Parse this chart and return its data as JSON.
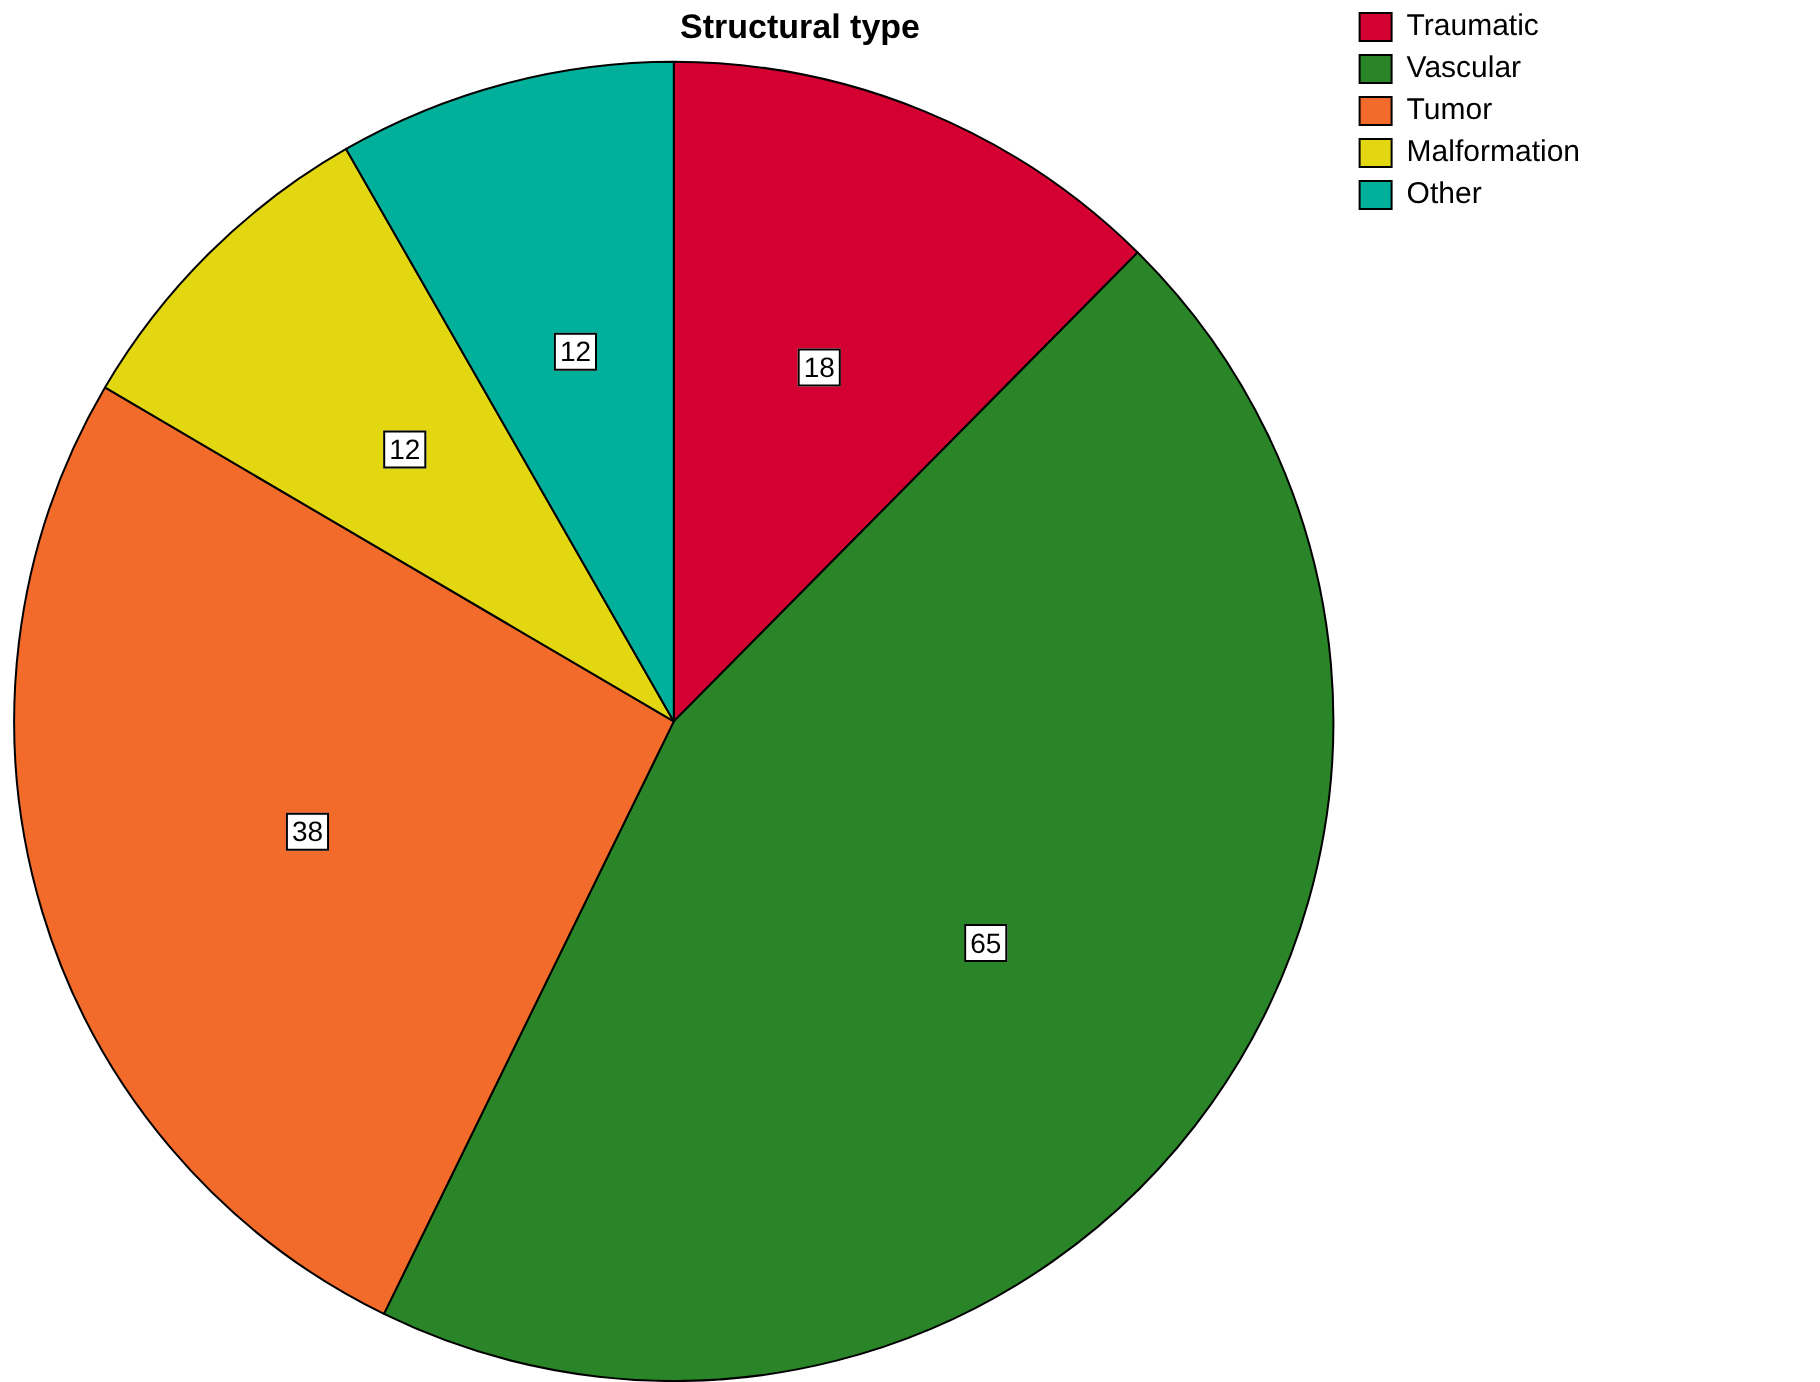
{
  "chart_data": {
    "type": "pie",
    "title": "Structural type",
    "categories": [
      "Traumatic",
      "Vascular",
      "Tumor",
      "Malformation",
      "Other"
    ],
    "values": [
      18,
      65,
      38,
      12,
      12
    ],
    "colors": [
      "#d50032",
      "#2a8528",
      "#f26b2b",
      "#e2d711",
      "#00b09b"
    ],
    "data_labels": true,
    "legend": "top right"
  }
}
